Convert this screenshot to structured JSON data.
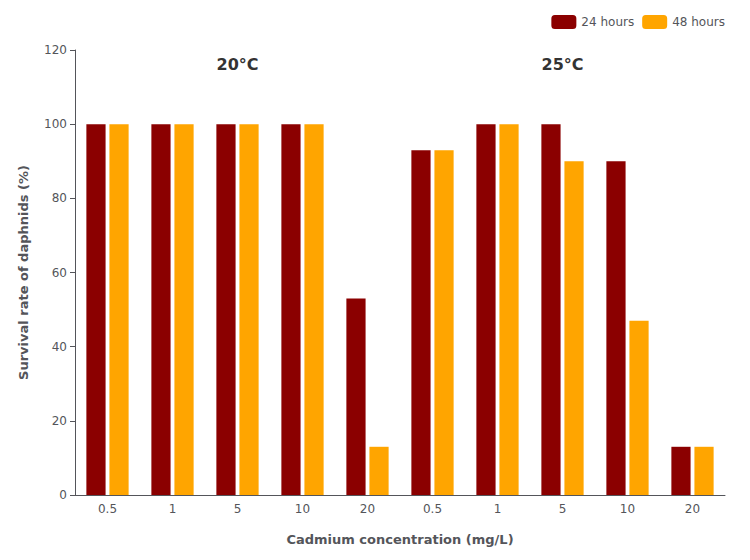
{
  "chart_data": {
    "type": "bar",
    "xlabel": "Cadmium concentration (mg/L)",
    "ylabel": "Survival rate of daphnids (%)",
    "categories": [
      "0.5",
      "1",
      "5",
      "10",
      "20",
      "0.5",
      "1",
      "5",
      "10",
      "20"
    ],
    "series": [
      {
        "name": "24 hours",
        "color": "#8B0000",
        "values": [
          100,
          100,
          100,
          100,
          53,
          93,
          100,
          100,
          90,
          13
        ]
      },
      {
        "name": "48 hours",
        "color": "#FFA500",
        "values": [
          100,
          100,
          100,
          100,
          13,
          93,
          100,
          90,
          47,
          13
        ]
      }
    ],
    "annotations": [
      "20°C",
      "25°C"
    ],
    "ylim": [
      0,
      120
    ],
    "yticks": [
      0,
      20,
      40,
      60,
      80,
      100,
      120
    ],
    "grid": false,
    "legend": "upper right"
  }
}
